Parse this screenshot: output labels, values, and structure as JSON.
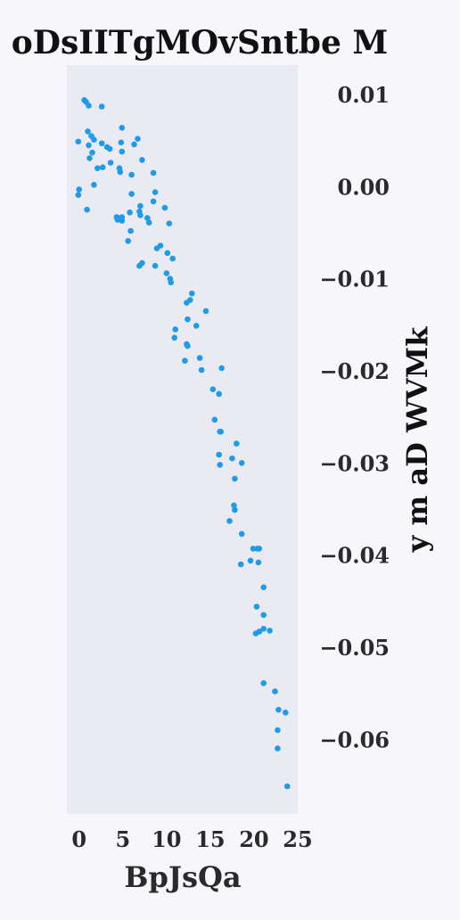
{
  "chart_data": {
    "type": "scatter",
    "title": "oDsIITgMOvSntbe M",
    "xlabel": "BpJsQa",
    "ylabel": "y m  aD WVMk",
    "xlim": [
      -1.4,
      25
    ],
    "ylim": [
      -0.068,
      0.0133
    ],
    "grid": false,
    "y_axis_side": "right",
    "point_color": "#1f9be8",
    "background_color": "#eaeaf2",
    "xticks": [
      {
        "value": 0,
        "label": "0"
      },
      {
        "value": 5,
        "label": "5"
      },
      {
        "value": 10,
        "label": "10"
      },
      {
        "value": 15,
        "label": "15"
      },
      {
        "value": 20,
        "label": "20"
      },
      {
        "value": 25,
        "label": "25"
      }
    ],
    "yticks": [
      {
        "value": 0.01,
        "label": "0.01"
      },
      {
        "value": 0.0,
        "label": "0.00"
      },
      {
        "value": -0.01,
        "label": "−0.01"
      },
      {
        "value": -0.02,
        "label": "−0.02"
      },
      {
        "value": -0.03,
        "label": "−0.03"
      },
      {
        "value": -0.04,
        "label": "−0.04"
      },
      {
        "value": -0.05,
        "label": "−0.05"
      },
      {
        "value": -0.06,
        "label": "−0.06"
      }
    ],
    "points": [
      [
        0.6,
        0.0095
      ],
      [
        0.8,
        0.0093
      ],
      [
        1.1,
        0.0089
      ],
      [
        2.6,
        0.0088
      ],
      [
        1.0,
        0.0061
      ],
      [
        1.4,
        0.0056
      ],
      [
        1.7,
        0.0052
      ],
      [
        -0.1,
        0.005
      ],
      [
        1.1,
        0.0046
      ],
      [
        2.6,
        0.0048
      ],
      [
        3.2,
        0.0044
      ],
      [
        3.5,
        0.0042
      ],
      [
        4.9,
        0.0065
      ],
      [
        6.7,
        0.0053
      ],
      [
        4.8,
        0.0049
      ],
      [
        6.3,
        0.0047
      ],
      [
        1.5,
        0.0038
      ],
      [
        4.9,
        0.0039
      ],
      [
        1.2,
        0.0032
      ],
      [
        3.6,
        0.0027
      ],
      [
        2.1,
        0.0021
      ],
      [
        2.7,
        0.0022
      ],
      [
        4.6,
        0.0021
      ],
      [
        4.7,
        0.0017
      ],
      [
        7.2,
        0.003
      ],
      [
        8.5,
        0.0016
      ],
      [
        6.0,
        0.0014
      ],
      [
        1.7,
        0.0003
      ],
      [
        0.0,
        -0.0002
      ],
      [
        -0.1,
        -0.0008
      ],
      [
        6.0,
        -0.0007
      ],
      [
        8.7,
        -0.0005
      ],
      [
        0.9,
        -0.0024
      ],
      [
        8.5,
        -0.0015
      ],
      [
        7.0,
        -0.002
      ],
      [
        9.8,
        -0.0022
      ],
      [
        6.9,
        -0.0026
      ],
      [
        5.8,
        -0.0027
      ],
      [
        7.0,
        -0.003
      ],
      [
        4.3,
        -0.0032
      ],
      [
        4.9,
        -0.0032
      ],
      [
        4.6,
        -0.0034
      ],
      [
        4.4,
        -0.0035
      ],
      [
        4.9,
        -0.0036
      ],
      [
        7.8,
        -0.0033
      ],
      [
        8.0,
        -0.0038
      ],
      [
        10.3,
        -0.0039
      ],
      [
        5.9,
        -0.0047
      ],
      [
        5.6,
        -0.0058
      ],
      [
        9.3,
        -0.0063
      ],
      [
        8.9,
        -0.0066
      ],
      [
        10.1,
        -0.0071
      ],
      [
        10.7,
        -0.0077
      ],
      [
        7.2,
        -0.0082
      ],
      [
        6.9,
        -0.0085
      ],
      [
        8.7,
        -0.0085
      ],
      [
        10.0,
        -0.0093
      ],
      [
        10.4,
        -0.0099
      ],
      [
        10.5,
        -0.0103
      ],
      [
        12.9,
        -0.0115
      ],
      [
        12.7,
        -0.0122
      ],
      [
        12.3,
        -0.0125
      ],
      [
        14.5,
        -0.0134
      ],
      [
        12.4,
        -0.0143
      ],
      [
        13.4,
        -0.015
      ],
      [
        11.0,
        -0.0154
      ],
      [
        10.9,
        -0.0163
      ],
      [
        12.3,
        -0.017
      ],
      [
        12.4,
        -0.0172
      ],
      [
        13.8,
        -0.0185
      ],
      [
        12.1,
        -0.0188
      ],
      [
        16.3,
        -0.0196
      ],
      [
        14.0,
        -0.0198
      ],
      [
        15.3,
        -0.0219
      ],
      [
        16.0,
        -0.0224
      ],
      [
        15.5,
        -0.0252
      ],
      [
        16.2,
        -0.0265
      ],
      [
        16.1,
        -0.0265
      ],
      [
        18.0,
        -0.0278
      ],
      [
        16.0,
        -0.029
      ],
      [
        17.5,
        -0.0294
      ],
      [
        18.6,
        -0.0299
      ],
      [
        16.1,
        -0.0301
      ],
      [
        17.8,
        -0.0316
      ],
      [
        17.7,
        -0.0345
      ],
      [
        17.8,
        -0.035
      ],
      [
        17.2,
        -0.0362
      ],
      [
        18.6,
        -0.0376
      ],
      [
        19.9,
        -0.0392
      ],
      [
        20.6,
        -0.0392
      ],
      [
        20.4,
        -0.0392
      ],
      [
        19.6,
        -0.0405
      ],
      [
        20.5,
        -0.0407
      ],
      [
        18.5,
        -0.0409
      ],
      [
        21.1,
        -0.0434
      ],
      [
        20.3,
        -0.0455
      ],
      [
        21.1,
        -0.0464
      ],
      [
        21.1,
        -0.0479
      ],
      [
        21.8,
        -0.0481
      ],
      [
        20.2,
        -0.0484
      ],
      [
        20.6,
        -0.0482
      ],
      [
        21.1,
        -0.0538
      ],
      [
        22.4,
        -0.0547
      ],
      [
        22.8,
        -0.0567
      ],
      [
        23.6,
        -0.057
      ],
      [
        22.7,
        -0.0589
      ],
      [
        22.7,
        -0.0609
      ],
      [
        23.8,
        -0.065
      ]
    ]
  }
}
